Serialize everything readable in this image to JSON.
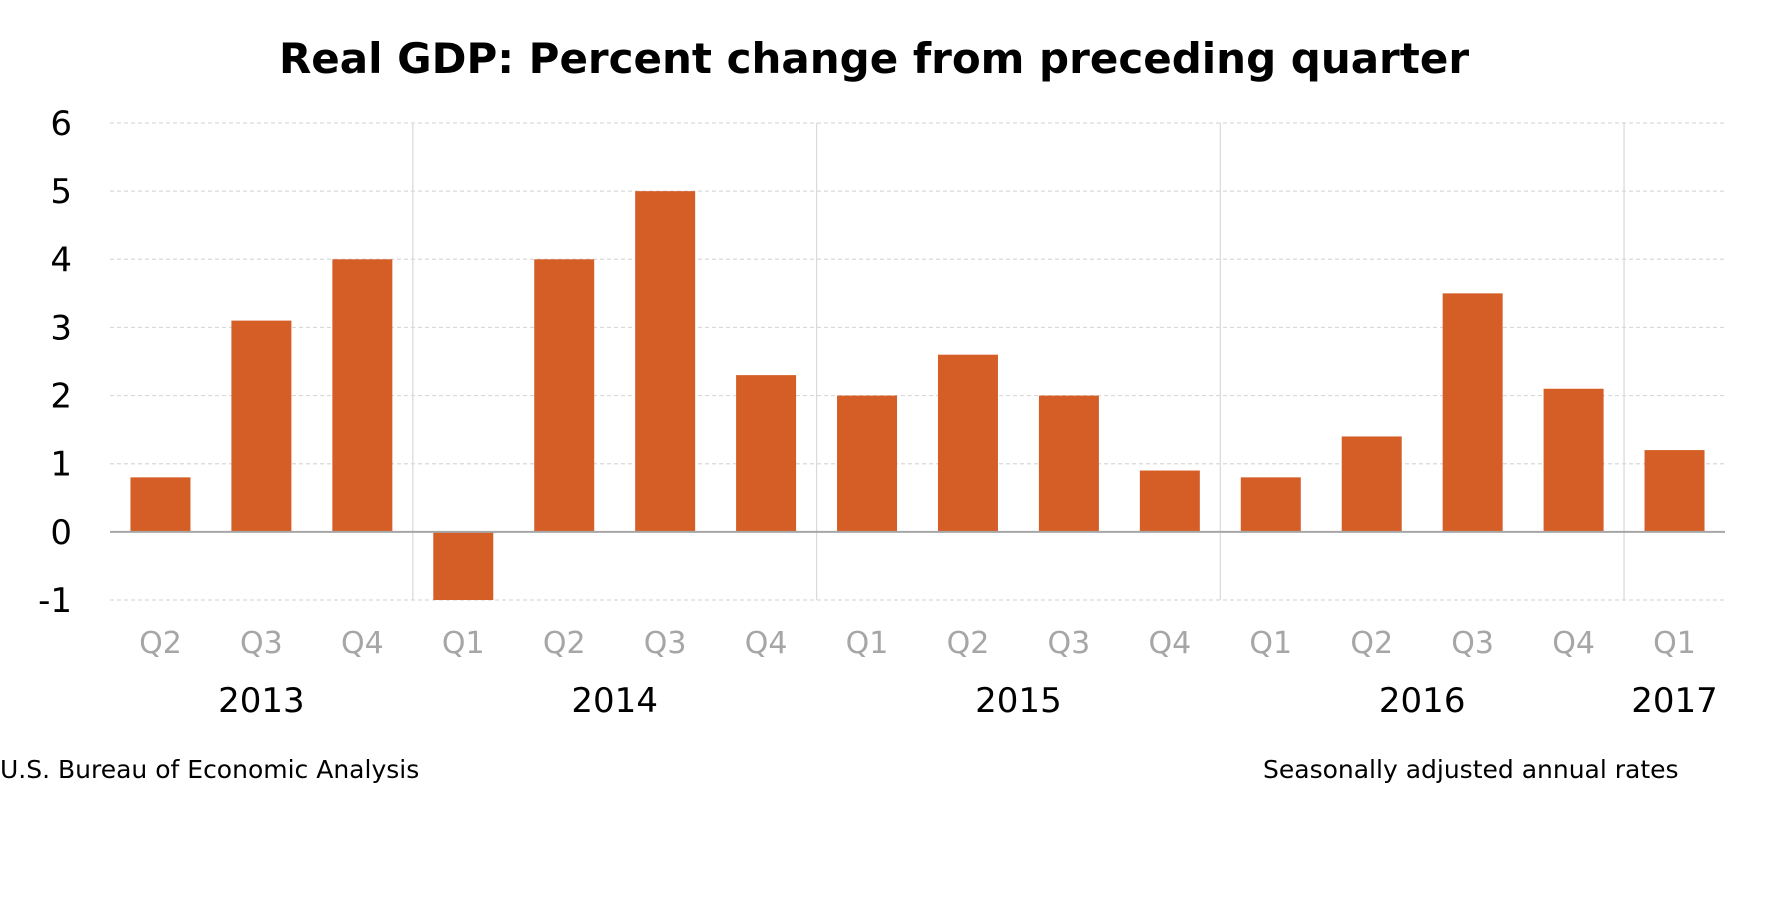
{
  "chart_data": {
    "type": "bar",
    "title": "Real GDP:  Percent change from preceding quarter",
    "xlabel": "",
    "ylabel": "",
    "ylim": [
      -1,
      6
    ],
    "yticks": [
      "6",
      "5",
      "4",
      "3",
      "2",
      "1",
      "0",
      "-1"
    ],
    "grid": true,
    "categories": [
      "Q2",
      "Q3",
      "Q4",
      "Q1",
      "Q2",
      "Q3",
      "Q4",
      "Q1",
      "Q2",
      "Q3",
      "Q4",
      "Q1",
      "Q2",
      "Q3",
      "Q4",
      "Q1"
    ],
    "years": [
      "2013",
      "2014",
      "2015",
      "2016",
      "2017"
    ],
    "values": [
      0.8,
      3.1,
      4.0,
      -1.0,
      4.0,
      5.0,
      2.3,
      2.0,
      2.6,
      2.0,
      0.9,
      0.8,
      1.4,
      3.5,
      2.1,
      1.2
    ],
    "bar_color": "#d55e27",
    "source": "U.S. Bureau of Economic Analysis",
    "note": "Seasonally adjusted annual  rates"
  }
}
